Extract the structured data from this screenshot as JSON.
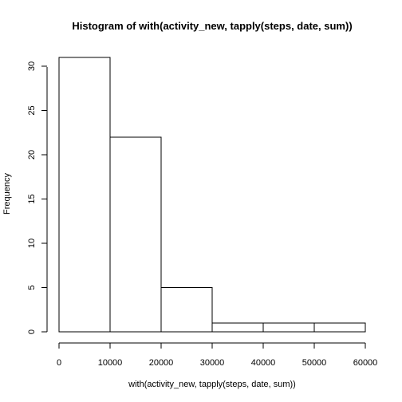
{
  "chart_data": {
    "type": "bar",
    "title": "Histogram of with(activity_new, tapply(steps, date, sum))",
    "xlabel": "with(activity_new, tapply(steps, date, sum))",
    "ylabel": "Frequency",
    "bins": [
      {
        "start": 0,
        "end": 10000,
        "count": 31
      },
      {
        "start": 10000,
        "end": 20000,
        "count": 22
      },
      {
        "start": 20000,
        "end": 30000,
        "count": 5
      },
      {
        "start": 30000,
        "end": 40000,
        "count": 1
      },
      {
        "start": 40000,
        "end": 50000,
        "count": 1
      },
      {
        "start": 50000,
        "end": 60000,
        "count": 1
      }
    ],
    "xlim": [
      0,
      60000
    ],
    "ylim": [
      0,
      31
    ],
    "x_ticks": [
      0,
      10000,
      20000,
      30000,
      40000,
      50000,
      60000
    ],
    "y_ticks": [
      0,
      5,
      10,
      15,
      20,
      25,
      30
    ],
    "grid": false,
    "legend": "none"
  }
}
